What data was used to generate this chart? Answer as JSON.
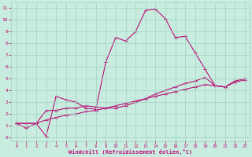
{
  "xlabel": "Windchill (Refroidissement éolien,°C)",
  "xlim": [
    -0.5,
    23.5
  ],
  "ylim": [
    -0.3,
    11.5
  ],
  "xticks": [
    0,
    1,
    2,
    3,
    4,
    5,
    6,
    7,
    8,
    9,
    10,
    11,
    12,
    13,
    14,
    15,
    16,
    17,
    18,
    19,
    20,
    21,
    22,
    23
  ],
  "yticks": [
    0,
    1,
    2,
    3,
    4,
    5,
    6,
    7,
    8,
    9,
    10,
    11
  ],
  "bg_color": "#c8ece0",
  "line_color": "#bb1177",
  "grid_color": "#a0d4c0",
  "line1_y": [
    1.2,
    0.8,
    1.2,
    0.1,
    3.5,
    3.2,
    3.0,
    2.5,
    2.4,
    6.4,
    8.5,
    8.2,
    9.0,
    10.8,
    10.9,
    10.1,
    8.5,
    8.6,
    7.2,
    5.8,
    4.4,
    4.3,
    null,
    null
  ],
  "line2_y": [
    1.2,
    1.2,
    1.2,
    2.3,
    2.3,
    2.5,
    2.5,
    2.7,
    2.6,
    2.5,
    2.5,
    2.7,
    3.0,
    3.3,
    3.7,
    4.0,
    4.3,
    4.6,
    4.8,
    5.1,
    4.4,
    4.3,
    4.8,
    5.0
  ],
  "line3_y": [
    1.2,
    1.2,
    1.2,
    1.5,
    1.7,
    1.9,
    2.0,
    2.2,
    2.3,
    2.5,
    2.7,
    2.9,
    3.1,
    3.3,
    3.5,
    3.7,
    3.9,
    4.1,
    4.3,
    4.5,
    4.4,
    4.3,
    4.7,
    4.9
  ]
}
